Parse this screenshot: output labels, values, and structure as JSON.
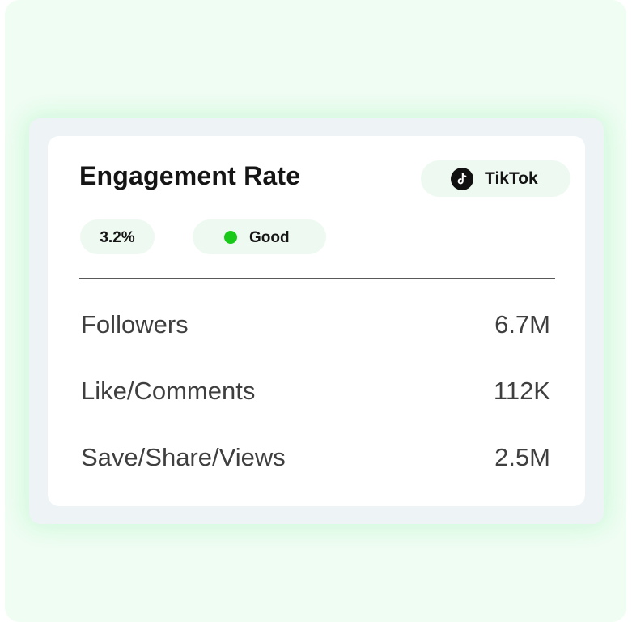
{
  "card": {
    "title": "Engagement Rate",
    "platform": {
      "name": "TikTok",
      "icon": "tiktok-icon"
    },
    "rate": "3.2%",
    "status": {
      "label": "Good",
      "dot_color": "#19c919"
    }
  },
  "stats": [
    {
      "label": "Followers",
      "value": "6.7M"
    },
    {
      "label": "Like/Comments",
      "value": "112K"
    },
    {
      "label": "Save/Share/Views",
      "value": "2.5M"
    }
  ],
  "colors": {
    "background": "#f0fdf3",
    "pill": "#eefaf1",
    "text": "#151515",
    "stat_text": "#3f3f3f"
  }
}
